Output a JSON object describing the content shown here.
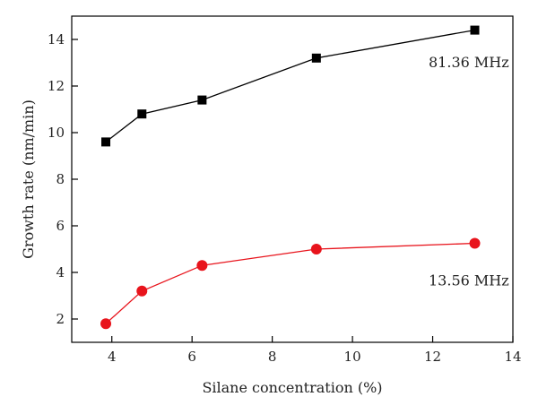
{
  "chart_data": {
    "type": "line",
    "title": "",
    "xlabel": "Silane concentration (%)",
    "ylabel": "Growth rate (nm/min)",
    "xlim": [
      3,
      14
    ],
    "ylim": [
      1,
      15
    ],
    "xticks": [
      4,
      6,
      8,
      10,
      12,
      14
    ],
    "yticks": [
      2,
      4,
      6,
      8,
      10,
      12,
      14
    ],
    "grid": false,
    "series": [
      {
        "name": "81.36 MHz",
        "color": "#000000",
        "marker": "square",
        "x": [
          3.85,
          4.75,
          6.25,
          9.1,
          13.05
        ],
        "y": [
          9.6,
          10.8,
          11.4,
          13.2,
          14.4
        ]
      },
      {
        "name": "13.56 MHz",
        "color": "#e8141c",
        "marker": "circle",
        "x": [
          3.85,
          4.75,
          6.25,
          9.1,
          13.05
        ],
        "y": [
          1.8,
          3.2,
          4.3,
          5.0,
          5.25
        ]
      }
    ]
  }
}
